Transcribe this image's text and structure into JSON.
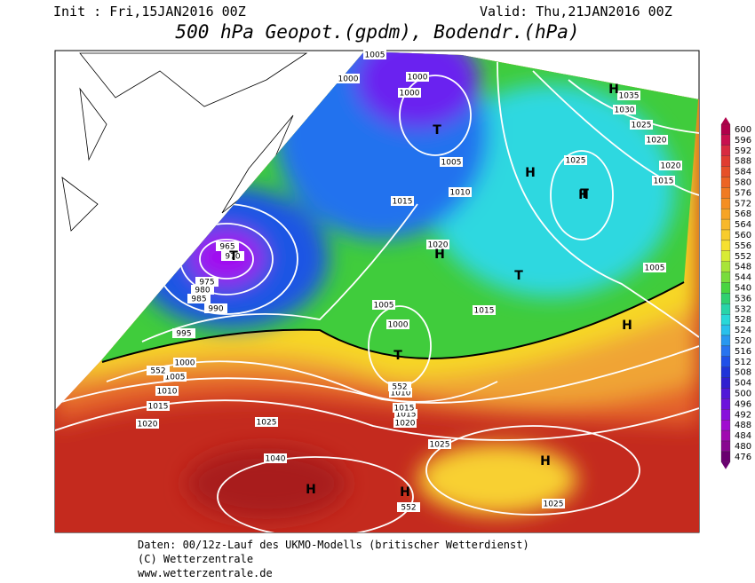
{
  "header": {
    "init": "Init : Fri,15JAN2016 00Z",
    "valid": "Valid: Thu,21JAN2016 00Z",
    "title": "500 hPa Geopot.(gpdm), Bodendr.(hPa)"
  },
  "colorbar": {
    "levels": [
      "600",
      "596",
      "592",
      "588",
      "584",
      "580",
      "576",
      "572",
      "568",
      "564",
      "560",
      "556",
      "552",
      "548",
      "544",
      "540",
      "536",
      "532",
      "528",
      "524",
      "520",
      "516",
      "512",
      "508",
      "504",
      "500",
      "496",
      "492",
      "488",
      "484",
      "480",
      "476"
    ]
  },
  "map": {
    "pressure_labels": [
      "1005",
      "1000",
      "1000",
      "1000",
      "1005",
      "1010",
      "1015",
      "1020",
      "1015",
      "1015",
      "1005",
      "1000",
      "965",
      "970",
      "975",
      "980",
      "985",
      "990",
      "995",
      "1000",
      "1005",
      "1010",
      "1015",
      "1020",
      "1025",
      "1040",
      "1035",
      "1030",
      "1025",
      "1020",
      "1020",
      "1015",
      "1025",
      "1005",
      "1010",
      "1015",
      "1020",
      "1025",
      "1025",
      "552",
      "552",
      "552"
    ],
    "centers": [
      "T",
      "H",
      "T",
      "H",
      "T",
      "T",
      "T",
      "H",
      "H",
      "H",
      "H",
      "H",
      "H"
    ]
  },
  "footer": [
    "Daten: 00/12z-Lauf des UKMO-Modells (britischer Wetterdienst)",
    "(C) Wetterzentrale",
    "www.wetterzentrale.de"
  ]
}
